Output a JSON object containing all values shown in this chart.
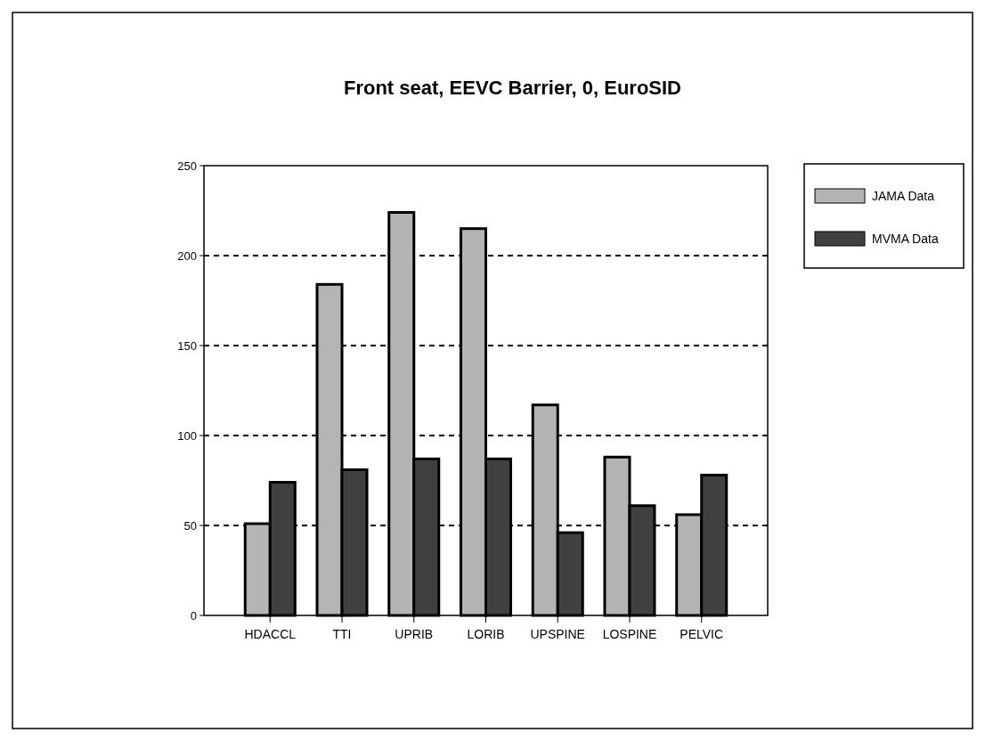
{
  "chart_data": {
    "type": "bar",
    "title": "Front seat, EEVC Barrier, 0, EuroSID",
    "categories": [
      "HDACCL",
      "TTI",
      "UPRIB",
      "LORIB",
      "UPSPINE",
      "LOSPINE",
      "PELVIC"
    ],
    "series": [
      {
        "name": "JAMA Data",
        "color": "#b4b4b4",
        "values": [
          51,
          184,
          224,
          215,
          117,
          88,
          56
        ]
      },
      {
        "name": "MVMA Data",
        "color": "#404040",
        "values": [
          74,
          81,
          87,
          87,
          46,
          61,
          78
        ]
      }
    ],
    "ylim": [
      0,
      250
    ],
    "yticks": [
      0,
      50,
      100,
      150,
      200,
      250
    ],
    "grid": "y",
    "legend": "top right"
  }
}
